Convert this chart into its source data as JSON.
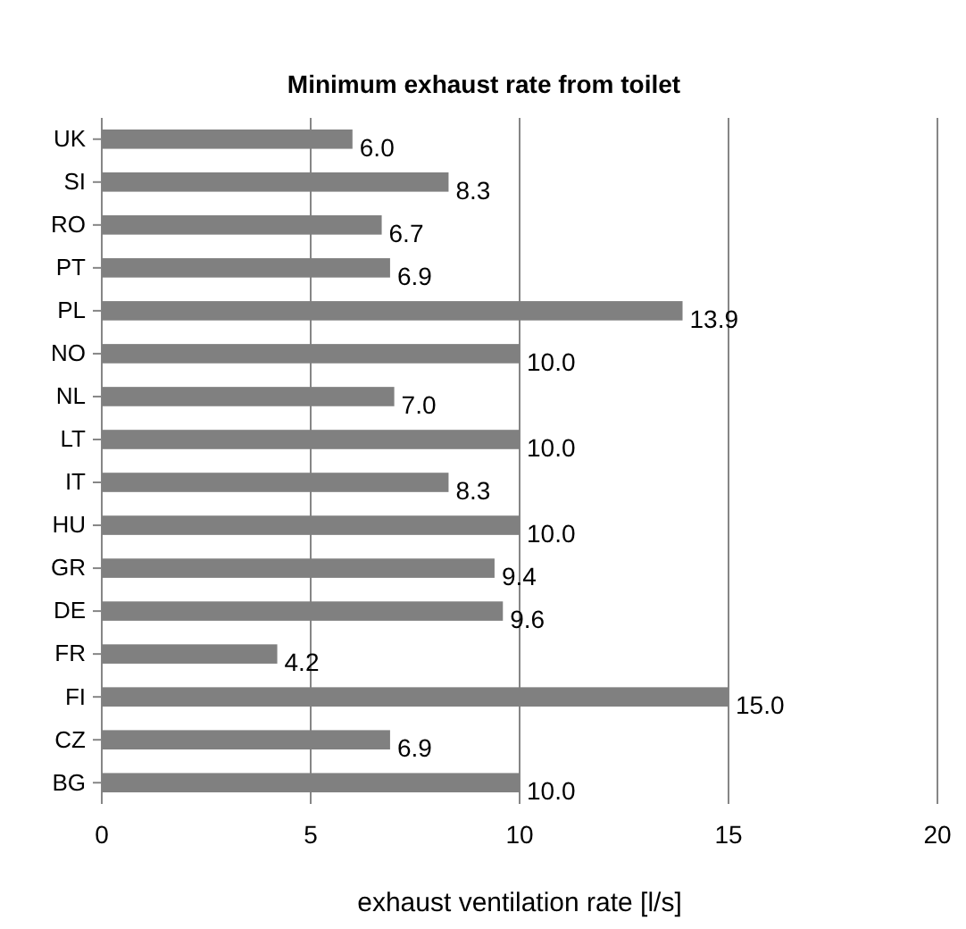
{
  "chart_data": {
    "type": "bar",
    "orientation": "horizontal",
    "title": "Minimum exhaust rate from toilet",
    "xlabel": "exhaust ventilation rate [l/s]",
    "categories": [
      "UK",
      "SI",
      "RO",
      "PT",
      "PL",
      "NO",
      "NL",
      "LT",
      "IT",
      "HU",
      "GR",
      "DE",
      "FR",
      "FI",
      "CZ",
      "BG"
    ],
    "values": [
      6.0,
      8.3,
      6.7,
      6.9,
      13.9,
      10.0,
      7.0,
      10.0,
      8.3,
      10.0,
      9.4,
      9.6,
      4.2,
      15.0,
      6.9,
      10.0
    ],
    "value_labels": [
      "6.0",
      "8.3",
      "6.7",
      "6.9",
      "13.9",
      "10.0",
      "7.0",
      "10.0",
      "8.3",
      "10.0",
      "9.4",
      "9.6",
      "4.2",
      "15.0",
      "6.9",
      "10.0"
    ],
    "color": "#808080",
    "xlim": [
      0,
      20
    ],
    "xticks": [
      0,
      5,
      10,
      15,
      20
    ],
    "grid": "x"
  }
}
